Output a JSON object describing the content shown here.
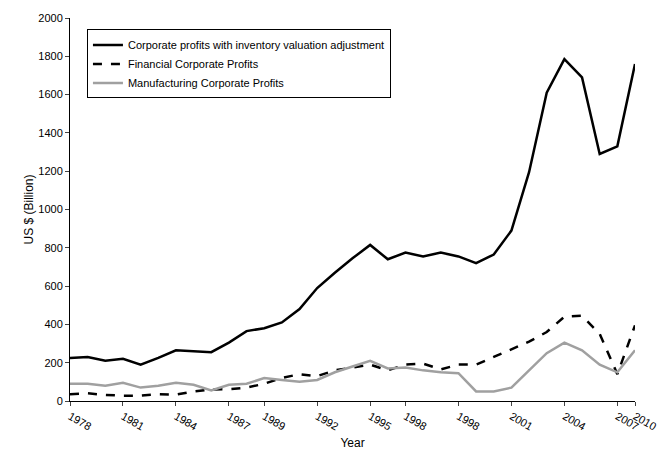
{
  "chart_data": {
    "type": "line",
    "x_label": "Year",
    "y_label": "US $ (Billion)",
    "categories": [
      "1978",
      null,
      null,
      "1981",
      null,
      null,
      "1984",
      null,
      null,
      "1987",
      null,
      "1989",
      null,
      null,
      "1992",
      null,
      null,
      "1995",
      null,
      "1998",
      null,
      null,
      "1998",
      null,
      null,
      "2001",
      null,
      null,
      "2004",
      null,
      null,
      "2007",
      "2010"
    ],
    "series": [
      {
        "name": "Corporate profits with inventory valuation adjustment",
        "color": "#000000",
        "line_style": "solid",
        "values": [
          225,
          230,
          210,
          220,
          190,
          225,
          265,
          260,
          255,
          305,
          365,
          380,
          410,
          480,
          590,
          670,
          745,
          815,
          740,
          775,
          755,
          775,
          755,
          720,
          765,
          890,
          1195,
          1610,
          1785,
          1690,
          1290,
          1330,
          1760
        ]
      },
      {
        "name": "Financial Corporate Profits",
        "color": "#000000",
        "line_style": "dashed",
        "values": [
          35,
          40,
          32,
          28,
          28,
          35,
          33,
          50,
          60,
          62,
          70,
          90,
          120,
          140,
          130,
          160,
          175,
          190,
          160,
          190,
          195,
          165,
          190,
          190,
          230,
          270,
          310,
          360,
          440,
          445,
          350,
          140,
          395
        ]
      },
      {
        "name": "Manufacturing Corporate Profits",
        "color": "#a0a0a0",
        "line_style": "solid",
        "values": [
          90,
          90,
          80,
          95,
          70,
          80,
          95,
          85,
          55,
          85,
          90,
          120,
          110,
          100,
          110,
          150,
          180,
          210,
          170,
          175,
          160,
          150,
          145,
          50,
          50,
          70,
          160,
          250,
          305,
          265,
          190,
          150,
          265
        ]
      }
    ],
    "ylim": [
      0,
      2000
    ],
    "yticks": [
      0,
      200,
      400,
      600,
      800,
      1000,
      1200,
      1400,
      1600,
      1800,
      2000
    ],
    "grid": false,
    "legend": "upper left"
  }
}
